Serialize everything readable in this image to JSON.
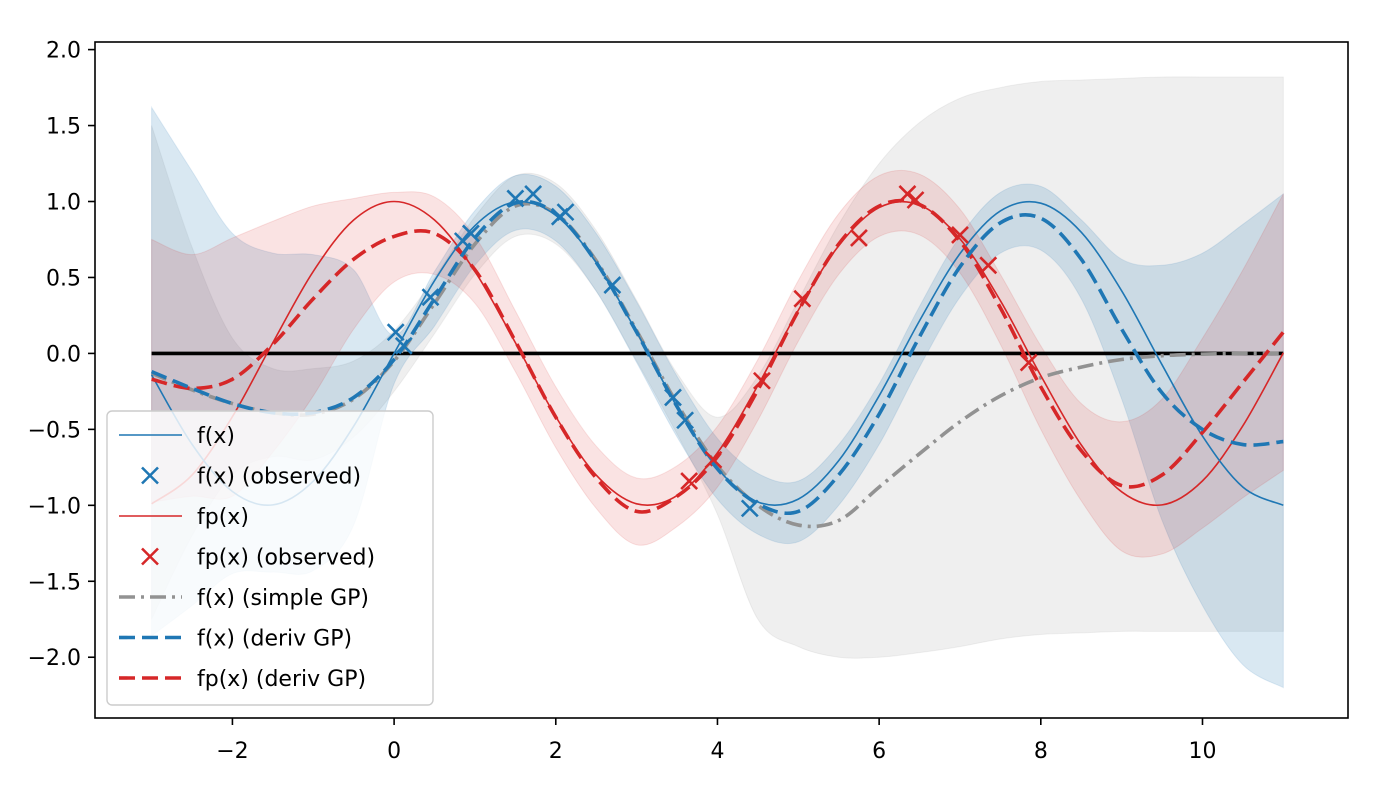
{
  "chart_data": {
    "type": "line",
    "title": "",
    "xlabel": "",
    "ylabel": "",
    "xlim": [
      -3.7,
      11.8
    ],
    "ylim": [
      -2.4,
      2.05
    ],
    "x_ticks": [
      -2,
      0,
      2,
      4,
      6,
      8,
      10
    ],
    "x_tick_labels": [
      "−2",
      "0",
      "2",
      "4",
      "6",
      "8",
      "10"
    ],
    "y_ticks": [
      -2.0,
      -1.5,
      -1.0,
      -0.5,
      0.0,
      0.5,
      1.0,
      1.5,
      2.0
    ],
    "y_tick_labels": [
      "−2.0",
      "−1.5",
      "−1.0",
      "−0.5",
      "0.0",
      "0.5",
      "1.0",
      "1.5",
      "2.0"
    ],
    "grid": false,
    "legend_position": "lower-left",
    "colors": {
      "blue": "#1f77b4",
      "red": "#d62728",
      "gray": "#929292",
      "black": "#000000"
    },
    "x_range": [
      -3,
      11
    ],
    "reference_line": {
      "y": 0,
      "x_start": -3,
      "x_end": 11,
      "color": "#000000"
    },
    "series": [
      {
        "name": "f(x)",
        "style": "solid-thin",
        "color": "#1f77b4",
        "x": [
          -3,
          -2.5,
          -2,
          -1.5,
          -1,
          -0.5,
          0,
          0.5,
          1,
          1.5,
          2,
          2.5,
          3,
          3.5,
          4,
          4.5,
          5,
          5.5,
          6,
          6.5,
          7,
          7.5,
          8,
          8.5,
          9,
          9.5,
          10,
          10.5,
          11
        ],
        "y": [
          -0.141,
          -0.598,
          -0.909,
          -0.997,
          -0.841,
          -0.479,
          0.0,
          0.479,
          0.841,
          0.997,
          0.909,
          0.598,
          0.141,
          -0.351,
          -0.757,
          -0.978,
          -0.959,
          -0.706,
          -0.279,
          0.215,
          0.657,
          0.938,
          0.989,
          0.798,
          0.412,
          -0.075,
          -0.544,
          -0.88,
          -1.0
        ]
      },
      {
        "name": "f(x) (observed)",
        "style": "markers-x",
        "color": "#1f77b4",
        "x": [
          0.02,
          0.12,
          0.45,
          0.85,
          0.95,
          1.5,
          1.72,
          2.05,
          2.12,
          2.7,
          3.45,
          3.6,
          4.4
        ],
        "y": [
          0.14,
          0.05,
          0.37,
          0.74,
          0.79,
          1.02,
          1.05,
          0.9,
          0.93,
          0.45,
          -0.29,
          -0.44,
          -1.02
        ]
      },
      {
        "name": "fp(x)",
        "style": "solid-thin",
        "color": "#d62728",
        "x": [
          -3,
          -2.5,
          -2,
          -1.5,
          -1,
          -0.5,
          0,
          0.5,
          1,
          1.5,
          2,
          2.5,
          3,
          3.5,
          4,
          4.5,
          5,
          5.5,
          6,
          6.5,
          7,
          7.5,
          8,
          8.5,
          9,
          9.5,
          10,
          10.5,
          11
        ],
        "y": [
          -0.99,
          -0.801,
          -0.416,
          0.071,
          0.54,
          0.878,
          1.0,
          0.878,
          0.54,
          0.071,
          -0.416,
          -0.801,
          -0.99,
          -0.936,
          -0.654,
          -0.211,
          0.284,
          0.709,
          0.96,
          0.977,
          0.754,
          0.347,
          -0.146,
          -0.602,
          -0.911,
          -0.997,
          -0.839,
          -0.476,
          0.004
        ]
      },
      {
        "name": "fp(x) (observed)",
        "style": "markers-x",
        "color": "#d62728",
        "x": [
          3.65,
          3.95,
          4.55,
          5.05,
          5.75,
          6.35,
          6.45,
          7.0,
          7.35,
          7.85
        ],
        "y": [
          -0.84,
          -0.7,
          -0.18,
          0.36,
          0.76,
          1.05,
          1.01,
          0.78,
          0.58,
          -0.06
        ]
      },
      {
        "name": "f(x) (simple GP)",
        "style": "dashdot",
        "color": "#929292",
        "x": [
          -3,
          -2.5,
          -2,
          -1.5,
          -1,
          -0.5,
          0,
          0.5,
          1,
          1.5,
          2,
          2.5,
          3,
          3.5,
          4,
          4.5,
          5,
          5.5,
          6,
          6.5,
          7,
          7.5,
          8,
          8.5,
          9,
          9.5,
          10,
          10.5,
          11
        ],
        "y": [
          -0.13,
          -0.24,
          -0.33,
          -0.39,
          -0.4,
          -0.3,
          -0.05,
          0.33,
          0.72,
          0.97,
          0.92,
          0.61,
          0.15,
          -0.33,
          -0.74,
          -1.0,
          -1.13,
          -1.1,
          -0.88,
          -0.66,
          -0.45,
          -0.28,
          -0.16,
          -0.09,
          -0.04,
          -0.015,
          -0.005,
          0.0,
          0.0
        ]
      },
      {
        "name": "f(x) (deriv GP)",
        "style": "dashed",
        "color": "#1f77b4",
        "x": [
          -3,
          -2.5,
          -2,
          -1.5,
          -1,
          -0.5,
          0,
          0.5,
          1,
          1.5,
          2,
          2.5,
          3,
          3.5,
          4,
          4.5,
          5,
          5.5,
          6,
          6.5,
          7,
          7.5,
          8,
          8.5,
          9,
          9.5,
          10,
          10.5,
          11
        ],
        "y": [
          -0.12,
          -0.23,
          -0.33,
          -0.39,
          -0.39,
          -0.29,
          -0.04,
          0.36,
          0.76,
          0.99,
          0.92,
          0.6,
          0.14,
          -0.35,
          -0.76,
          -0.99,
          -1.04,
          -0.8,
          -0.4,
          0.11,
          0.57,
          0.86,
          0.89,
          0.62,
          0.16,
          -0.26,
          -0.5,
          -0.6,
          -0.58
        ]
      },
      {
        "name": "fp(x) (deriv GP)",
        "style": "dashed",
        "color": "#d62728",
        "x": [
          -3,
          -2.5,
          -2,
          -1.5,
          -1,
          -0.5,
          0,
          0.5,
          1,
          1.5,
          2,
          2.5,
          3,
          3.5,
          4,
          4.5,
          5,
          5.5,
          6,
          6.5,
          7,
          7.5,
          8,
          8.5,
          9,
          9.5,
          10,
          10.5,
          11
        ],
        "y": [
          -0.17,
          -0.23,
          -0.17,
          0.06,
          0.36,
          0.62,
          0.77,
          0.79,
          0.55,
          0.08,
          -0.42,
          -0.82,
          -1.04,
          -0.94,
          -0.68,
          -0.24,
          0.28,
          0.72,
          0.97,
          0.98,
          0.74,
          0.3,
          -0.22,
          -0.64,
          -0.87,
          -0.8,
          -0.52,
          -0.19,
          0.14
        ]
      }
    ],
    "bands": [
      {
        "series": "f(x) (simple GP)",
        "color": "#929292",
        "opacity": 0.15,
        "x": [
          -3,
          -2.5,
          -2,
          -1.5,
          -1,
          -0.5,
          0,
          0.5,
          1,
          1.5,
          2,
          2.5,
          3,
          3.5,
          4,
          4.5,
          5,
          5.5,
          6,
          6.5,
          7,
          7.5,
          8,
          8.5,
          9,
          9.5,
          10,
          10.5,
          11
        ],
        "upper": [
          1.5,
          0.7,
          0.1,
          -0.1,
          -0.1,
          -0.05,
          0.15,
          0.5,
          0.9,
          1.17,
          1.12,
          0.81,
          0.35,
          -0.13,
          -0.42,
          -0.15,
          0.35,
          0.85,
          1.25,
          1.52,
          1.68,
          1.75,
          1.79,
          1.8,
          1.81,
          1.82,
          1.82,
          1.82,
          1.82
        ],
        "lower": [
          -1.75,
          -1.2,
          -0.8,
          -0.68,
          -0.7,
          -0.55,
          -0.25,
          0.13,
          0.52,
          0.77,
          0.72,
          0.41,
          -0.05,
          -0.53,
          -1.06,
          -1.75,
          -1.93,
          -2.0,
          -2.0,
          -1.97,
          -1.93,
          -1.88,
          -1.85,
          -1.84,
          -1.83,
          -1.83,
          -1.83,
          -1.83,
          -1.83
        ]
      },
      {
        "series": "f(x) (deriv GP)",
        "color": "#1f77b4",
        "opacity": 0.17,
        "x": [
          -3,
          -2.5,
          -2,
          -1.5,
          -1,
          -0.5,
          0,
          0.5,
          1,
          1.5,
          2,
          2.5,
          3,
          3.5,
          4,
          4.5,
          5,
          5.5,
          6,
          6.5,
          7,
          7.5,
          8,
          8.5,
          9,
          9.5,
          10,
          10.5,
          11
        ],
        "upper": [
          1.62,
          1.2,
          0.79,
          0.66,
          0.65,
          0.55,
          0.12,
          0.54,
          0.94,
          1.17,
          1.1,
          0.79,
          0.34,
          -0.15,
          -0.56,
          -0.79,
          -0.84,
          -0.6,
          -0.2,
          0.31,
          0.77,
          1.06,
          1.1,
          0.88,
          0.62,
          0.58,
          0.66,
          0.85,
          1.05
        ],
        "lower": [
          -1.86,
          -1.66,
          -1.45,
          -1.44,
          -1.43,
          -1.13,
          -0.2,
          0.18,
          0.58,
          0.81,
          0.74,
          0.41,
          -0.06,
          -0.55,
          -0.96,
          -1.19,
          -1.24,
          -1.0,
          -0.6,
          -0.09,
          0.37,
          0.66,
          0.68,
          0.36,
          -0.3,
          -1.1,
          -1.66,
          -2.05,
          -2.2
        ]
      },
      {
        "series": "fp(x) (deriv GP)",
        "color": "#d62728",
        "opacity": 0.13,
        "x": [
          -3,
          -2.5,
          -2,
          -1.5,
          -1,
          -0.5,
          0,
          0.5,
          1,
          1.5,
          2,
          2.5,
          3,
          3.5,
          4,
          4.5,
          5,
          5.5,
          6,
          6.5,
          7,
          7.5,
          8,
          8.5,
          9,
          9.5,
          10,
          10.5,
          11
        ],
        "upper": [
          0.75,
          0.65,
          0.76,
          0.87,
          0.97,
          1.02,
          1.06,
          1.03,
          0.77,
          0.28,
          -0.22,
          -0.61,
          -0.82,
          -0.74,
          -0.48,
          -0.04,
          0.48,
          0.92,
          1.17,
          1.18,
          0.95,
          0.52,
          0.05,
          -0.33,
          -0.45,
          -0.3,
          0.1,
          0.55,
          1.05
        ],
        "lower": [
          -0.98,
          -0.94,
          -0.94,
          -0.65,
          -0.28,
          0.16,
          0.47,
          0.52,
          0.33,
          -0.12,
          -0.62,
          -1.02,
          -1.26,
          -1.14,
          -0.88,
          -0.44,
          0.08,
          0.52,
          0.77,
          0.78,
          0.53,
          0.06,
          -0.5,
          -0.97,
          -1.3,
          -1.32,
          -1.15,
          -0.95,
          -0.77
        ]
      }
    ],
    "legend": [
      {
        "label": "f(x)",
        "style": "solid-thin",
        "color": "#1f77b4"
      },
      {
        "label": "f(x) (observed)",
        "style": "marker-x",
        "color": "#1f77b4"
      },
      {
        "label": "fp(x)",
        "style": "solid-thin",
        "color": "#d62728"
      },
      {
        "label": "fp(x) (observed)",
        "style": "marker-x",
        "color": "#d62728"
      },
      {
        "label": "f(x) (simple GP)",
        "style": "dashdot",
        "color": "#929292"
      },
      {
        "label": "f(x) (deriv GP)",
        "style": "dashed",
        "color": "#1f77b4"
      },
      {
        "label": "fp(x) (deriv GP)",
        "style": "dashed",
        "color": "#d62728"
      }
    ]
  }
}
